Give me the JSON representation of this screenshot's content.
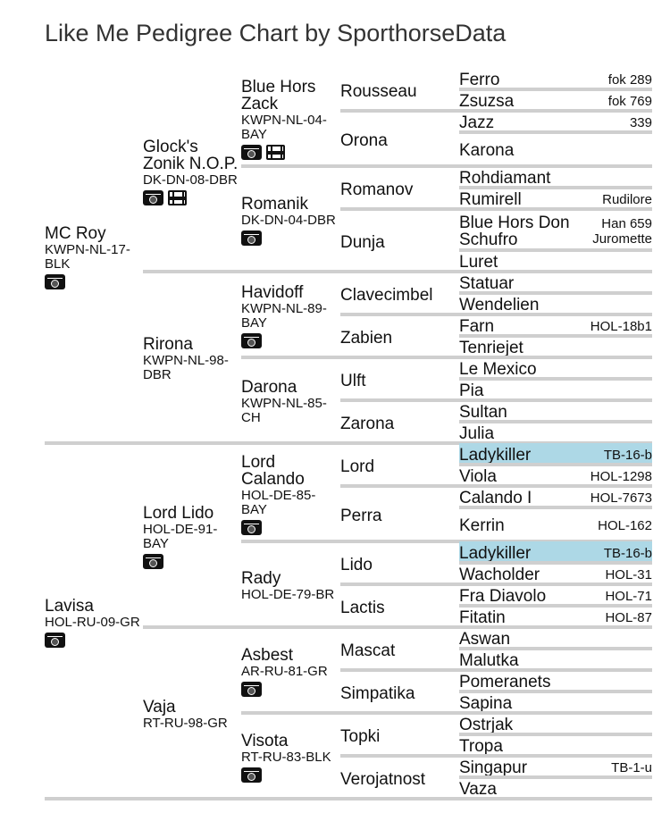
{
  "title": "Like Me Pedigree Chart by SporthorseData",
  "colors": {
    "highlight": "#add8e6",
    "separator": "#cfcfcf"
  },
  "pedigree": {
    "gen1": [
      {
        "name": "MC Roy",
        "reg": "KWPN-NL-17-BLK",
        "icons": [
          "camera-icon"
        ]
      },
      {
        "name": "Lavisa",
        "reg": "HOL-RU-09-GR",
        "icons": [
          "camera-icon"
        ]
      }
    ],
    "gen2": [
      {
        "name": "Glock's Zonik N.O.P.",
        "reg": "DK-DN-08-DBR",
        "icons": [
          "camera-icon",
          "film-icon"
        ]
      },
      {
        "name": "Rirona",
        "reg": "KWPN-NL-98-DBR",
        "icons": []
      },
      {
        "name": "Lord Lido",
        "reg": "HOL-DE-91-BAY",
        "icons": [
          "camera-icon"
        ]
      },
      {
        "name": "Vaja",
        "reg": "RT-RU-98-GR",
        "icons": []
      }
    ],
    "gen3": [
      {
        "name": "Blue Hors Zack",
        "reg": "KWPN-NL-04-BAY",
        "icons": [
          "camera-icon",
          "film-icon"
        ]
      },
      {
        "name": "Romanik",
        "reg": "DK-DN-04-DBR",
        "icons": [
          "camera-icon"
        ]
      },
      {
        "name": "Havidoff",
        "reg": "KWPN-NL-89-BAY",
        "icons": [
          "camera-icon"
        ]
      },
      {
        "name": "Darona",
        "reg": "KWPN-NL-85-CH",
        "icons": []
      },
      {
        "name": "Lord Calando",
        "reg": "HOL-DE-85-BAY",
        "icons": [
          "camera-icon"
        ]
      },
      {
        "name": "Rady",
        "reg": "HOL-DE-79-BR",
        "icons": []
      },
      {
        "name": "Asbest",
        "reg": "AR-RU-81-GR",
        "icons": [
          "camera-icon"
        ]
      },
      {
        "name": "Visota",
        "reg": "RT-RU-83-BLK",
        "icons": [
          "camera-icon"
        ]
      }
    ],
    "gen4": [
      {
        "name": "Rousseau"
      },
      {
        "name": "Orona"
      },
      {
        "name": "Romanov"
      },
      {
        "name": "Dunja"
      },
      {
        "name": "Clavecimbel"
      },
      {
        "name": "Zabien"
      },
      {
        "name": "Ulft"
      },
      {
        "name": "Zarona"
      },
      {
        "name": "Lord"
      },
      {
        "name": "Perra"
      },
      {
        "name": "Lido"
      },
      {
        "name": "Lactis"
      },
      {
        "name": "Mascat"
      },
      {
        "name": "Simpatika"
      },
      {
        "name": "Topki"
      },
      {
        "name": "Verojatnost"
      }
    ],
    "gen5": [
      {
        "name": "Ferro",
        "note": "fok 289"
      },
      {
        "name": "Zsuzsa",
        "note": "fok 769"
      },
      {
        "name": "Jazz",
        "note": "339"
      },
      {
        "name": "Karona",
        "note": ""
      },
      {
        "name": "Rohdiamant",
        "note": ""
      },
      {
        "name": "Rumirell",
        "note": "Rudilore"
      },
      {
        "name": "Blue Hors Don Schufro",
        "note": "Han 659 Juromette"
      },
      {
        "name": "Luret",
        "note": ""
      },
      {
        "name": "Statuar",
        "note": ""
      },
      {
        "name": "Wendelien",
        "note": ""
      },
      {
        "name": "Farn",
        "note": "HOL-18b1"
      },
      {
        "name": "Tenriejet",
        "note": ""
      },
      {
        "name": "Le Mexico",
        "note": ""
      },
      {
        "name": "Pia",
        "note": ""
      },
      {
        "name": "Sultan",
        "note": ""
      },
      {
        "name": "Julia",
        "note": ""
      },
      {
        "name": "Ladykiller",
        "note": "TB-16-b",
        "highlight": true
      },
      {
        "name": "Viola",
        "note": "HOL-1298"
      },
      {
        "name": "Calando I",
        "note": "HOL-7673"
      },
      {
        "name": "Kerrin",
        "note": "HOL-162"
      },
      {
        "name": "Ladykiller",
        "note": "TB-16-b",
        "highlight": true
      },
      {
        "name": "Wacholder",
        "note": "HOL-31"
      },
      {
        "name": "Fra Diavolo",
        "note": "HOL-71"
      },
      {
        "name": "Fitatin",
        "note": "HOL-87"
      },
      {
        "name": "Aswan",
        "note": ""
      },
      {
        "name": "Malutka",
        "note": ""
      },
      {
        "name": "Pomeranets",
        "note": ""
      },
      {
        "name": "Sapina",
        "note": ""
      },
      {
        "name": "Ostrjak",
        "note": ""
      },
      {
        "name": "Tropa",
        "note": ""
      },
      {
        "name": "Singapur",
        "note": "TB-1-u"
      },
      {
        "name": "Vaza",
        "note": ""
      }
    ]
  }
}
